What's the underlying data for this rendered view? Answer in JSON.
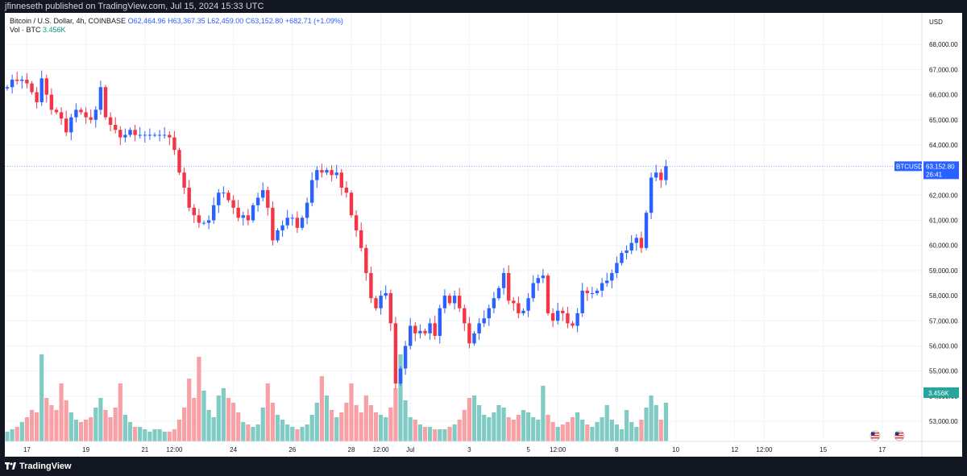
{
  "header": {
    "published": "jfinneseth published on TradingView.com, Jul 15, 2024 15:33 UTC"
  },
  "legend": {
    "symbol": "Bitcoin / U.S. Dollar, 4h, COINBASE",
    "open": "O62,464.96",
    "high": "H63,367.35",
    "low": "L62,459.00",
    "close": "C63,152.80",
    "change": "+682.71 (+1.09%)",
    "vol_label": "Vol · BTC",
    "vol_value": "3.456K"
  },
  "price_tag": {
    "symbol": "BTCUSD",
    "price": "63,152.80",
    "countdown": "26:41"
  },
  "vol_tag": {
    "value": "3.456K"
  },
  "colors": {
    "up": "#2962ff",
    "down": "#f23645",
    "vol_up": "#80cbc4",
    "vol_down": "#f7a1a7",
    "grid": "#f0f3fa"
  },
  "footer": {
    "brand": "TradingView"
  },
  "chart_data": {
    "type": "candlestick",
    "currency": "USD",
    "y_ticks": [
      53000,
      54000,
      55000,
      56000,
      57000,
      58000,
      59000,
      60000,
      61000,
      62000,
      63000,
      64000,
      65000,
      66000,
      67000,
      68000
    ],
    "y_tick_labels": [
      "53,000.00",
      "54,000.00",
      "55,000.00",
      "56,000.00",
      "57,000.00",
      "58,000.00",
      "59,000.00",
      "60,000.00",
      "61,000.00",
      "62,000.00",
      "63,000.00",
      "64,000.00",
      "65,000.00",
      "66,000.00",
      "67,000.00",
      "68,000.00"
    ],
    "ylim": [
      52200,
      69000
    ],
    "x_ticks": [
      {
        "label": "17",
        "bar": 4
      },
      {
        "label": "19",
        "bar": 16
      },
      {
        "label": "21",
        "bar": 28
      },
      {
        "label": "12:00",
        "bar": 34
      },
      {
        "label": "24",
        "bar": 46
      },
      {
        "label": "26",
        "bar": 58
      },
      {
        "label": "28",
        "bar": 70
      },
      {
        "label": "12:00",
        "bar": 76
      },
      {
        "label": "Jul",
        "bar": 82
      },
      {
        "label": "3",
        "bar": 94
      },
      {
        "label": "5",
        "bar": 106
      },
      {
        "label": "12:00",
        "bar": 112
      },
      {
        "label": "8",
        "bar": 124
      },
      {
        "label": "10",
        "bar": 136
      },
      {
        "label": "12",
        "bar": 148
      },
      {
        "label": "12:00",
        "bar": 154
      },
      {
        "label": "15",
        "bar": 166
      },
      {
        "label": "17",
        "bar": 178
      }
    ],
    "close_start": 66250,
    "closes": [
      66300,
      66600,
      66550,
      66600,
      66450,
      66100,
      65700,
      66650,
      66000,
      65400,
      65300,
      65050,
      64500,
      65100,
      65400,
      65300,
      65100,
      65000,
      65400,
      66300,
      65100,
      64800,
      64600,
      64300,
      64400,
      64600,
      64400,
      64400,
      64400,
      64400,
      64400,
      64400,
      64400,
      64300,
      63800,
      62900,
      62300,
      61500,
      61200,
      60900,
      60900,
      61000,
      61600,
      62100,
      62100,
      61800,
      61500,
      61100,
      61200,
      61000,
      61600,
      61900,
      62200,
      61500,
      60200,
      60600,
      60800,
      61100,
      61100,
      60700,
      61100,
      61700,
      62600,
      63000,
      62900,
      63000,
      62800,
      62900,
      62300,
      62100,
      61200,
      60600,
      59900,
      58900,
      57900,
      57500,
      58000,
      58100,
      56900,
      54500,
      55100,
      56000,
      56800,
      56500,
      56600,
      56500,
      56900,
      56400,
      57500,
      58000,
      57700,
      58000,
      57500,
      56900,
      56100,
      56500,
      56900,
      57100,
      57500,
      57900,
      58300,
      58900,
      57800,
      57700,
      57300,
      57400,
      57900,
      58500,
      58700,
      58800,
      57300,
      57000,
      57400,
      57300,
      56900,
      56800,
      57300,
      58200,
      58100,
      58100,
      58200,
      58500,
      58600,
      58900,
      59300,
      59700,
      59800,
      60100,
      60300,
      59900,
      61300,
      62700,
      62900,
      62600,
      63150
    ],
    "volumes": [
      0.4,
      0.5,
      0.6,
      0.8,
      1.0,
      1.3,
      1.2,
      3.6,
      1.8,
      1.5,
      1.3,
      2.4,
      1.7,
      1.2,
      0.9,
      0.8,
      0.9,
      1.0,
      1.4,
      1.8,
      1.3,
      1.0,
      1.4,
      2.4,
      1.1,
      0.8,
      0.6,
      0.6,
      0.5,
      0.4,
      0.5,
      0.5,
      0.4,
      0.4,
      0.5,
      0.9,
      1.4,
      2.6,
      1.8,
      3.5,
      2.1,
      1.3,
      1.0,
      1.9,
      2.2,
      1.8,
      1.6,
      1.2,
      0.8,
      0.7,
      0.6,
      0.7,
      1.4,
      2.4,
      1.6,
      1.1,
      0.9,
      0.7,
      0.6,
      0.5,
      0.6,
      0.7,
      1.1,
      1.6,
      2.7,
      1.9,
      1.3,
      1.0,
      1.2,
      1.6,
      2.4,
      1.5,
      1.2,
      1.9,
      1.5,
      1.2,
      1.1,
      1.0,
      1.4,
      2.2,
      3.6,
      1.7,
      1.0,
      0.9,
      0.7,
      0.6,
      0.6,
      0.5,
      0.5,
      0.5,
      0.6,
      0.7,
      0.9,
      1.3,
      1.8,
      1.9,
      1.5,
      1.1,
      1.0,
      1.2,
      1.5,
      1.4,
      1.0,
      0.9,
      1.1,
      1.3,
      1.2,
      1.0,
      0.9,
      2.3,
      1.1,
      0.8,
      0.6,
      0.7,
      0.8,
      1.0,
      1.2,
      0.9,
      0.7,
      0.6,
      0.8,
      1.0,
      1.5,
      0.9,
      0.7,
      0.5,
      1.3,
      0.8,
      0.6,
      0.9,
      1.4,
      1.9,
      1.5,
      0.9,
      1.6,
      1.1
    ],
    "last_price": 63152.8,
    "last_volume_label": "3.456K"
  }
}
